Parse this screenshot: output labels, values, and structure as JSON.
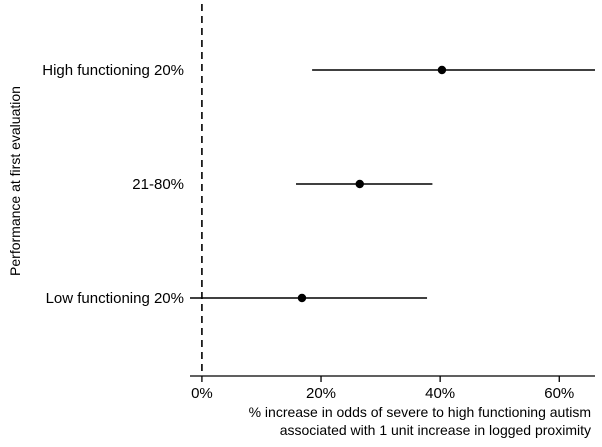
{
  "chart_data": {
    "type": "forest",
    "ylabel": "Performance at first evaluation",
    "xlabel_lines": [
      "% increase in odds of severe to high functioning autism",
      "associated with 1 unit increase in logged proximity"
    ],
    "xlim": [
      -2,
      66
    ],
    "xticks": [
      0,
      20,
      40,
      60
    ],
    "xtick_labels": [
      "0%",
      "20%",
      "40%",
      "60%"
    ],
    "reference_line": 0,
    "reference_style": "dashed",
    "categories": [
      "High functioning 20%",
      "21-80%",
      "Low functioning 20%"
    ],
    "estimates": [
      40.3,
      26.5,
      16.8
    ],
    "ci_low": [
      18.5,
      15.8,
      -2
    ],
    "ci_high": [
      66,
      38.7,
      37.8
    ],
    "color": "#000000"
  }
}
